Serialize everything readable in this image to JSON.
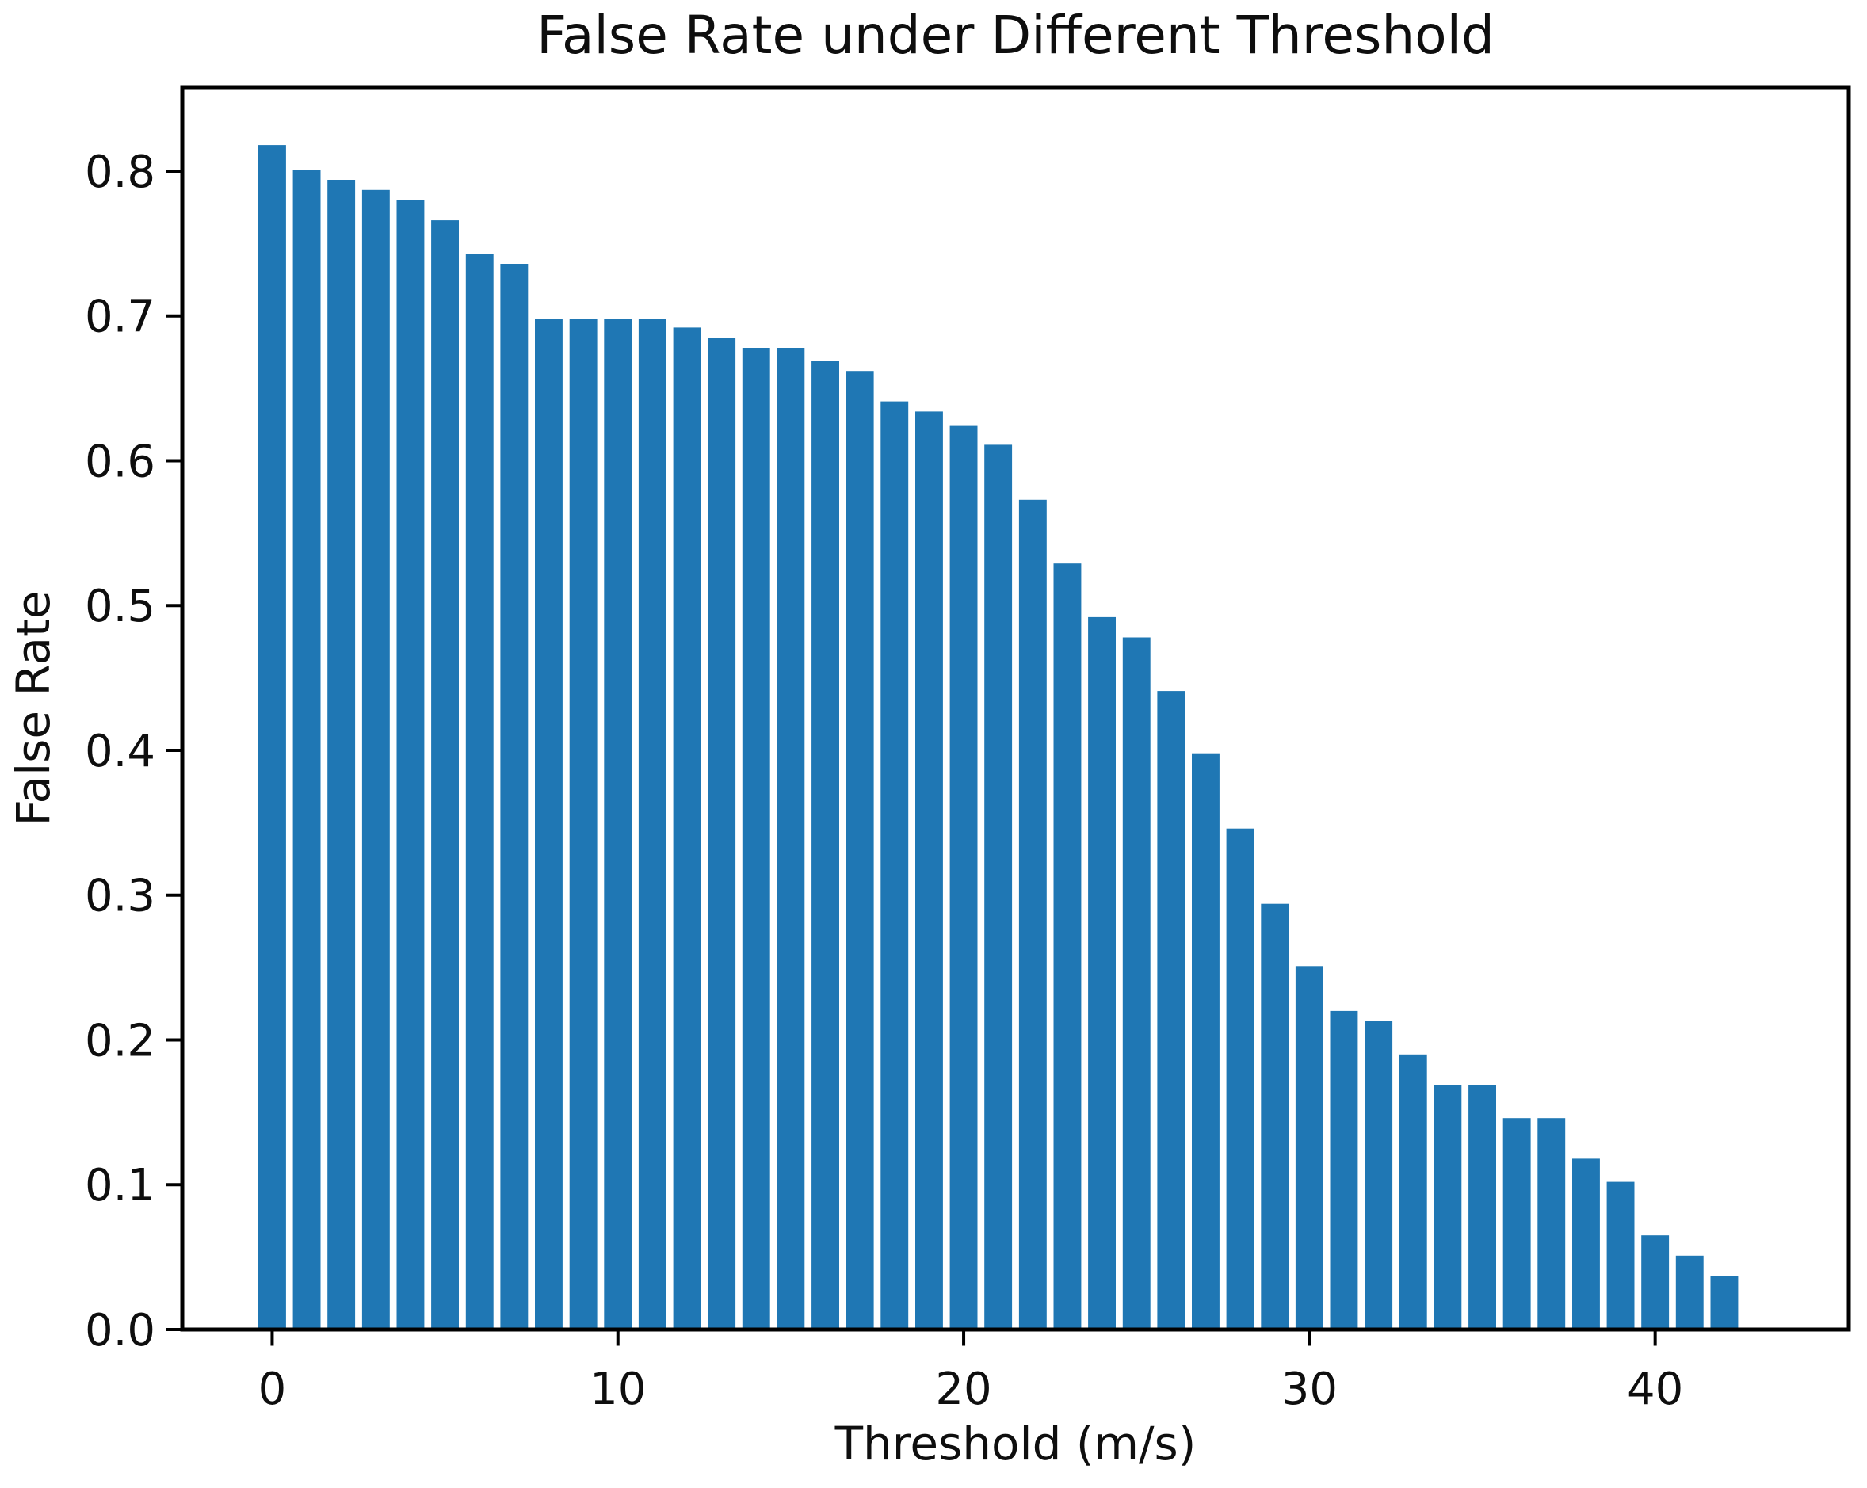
{
  "page": {
    "background": "#ffffff"
  },
  "chart_data": {
    "type": "bar",
    "title": "False Rate under Different Threshold",
    "xlabel": "Threshold (m/s)",
    "ylabel": "False Rate",
    "bar_color": "#1f77b4",
    "axis_color": "#000000",
    "text_color": "#0e0e0e",
    "grid": false,
    "legend": "none",
    "categories": [
      0,
      1,
      2,
      3,
      4,
      5,
      6,
      7,
      8,
      9,
      10,
      11,
      12,
      13,
      14,
      15,
      16,
      17,
      18,
      19,
      20,
      21,
      22,
      23,
      24,
      25,
      26,
      27,
      28,
      29,
      30,
      31,
      32,
      33,
      34,
      35,
      36,
      37,
      38,
      39,
      40,
      41,
      42
    ],
    "values": [
      0.818,
      0.801,
      0.794,
      0.787,
      0.78,
      0.766,
      0.743,
      0.736,
      0.698,
      0.698,
      0.698,
      0.698,
      0.692,
      0.685,
      0.678,
      0.678,
      0.669,
      0.662,
      0.641,
      0.634,
      0.624,
      0.611,
      0.573,
      0.529,
      0.492,
      0.478,
      0.441,
      0.398,
      0.346,
      0.294,
      0.251,
      0.22,
      0.213,
      0.19,
      0.169,
      0.169,
      0.146,
      0.146,
      0.118,
      0.102,
      0.065,
      0.051,
      0.037
    ],
    "bar_width": 0.8,
    "xticks": {
      "values": [
        0,
        10,
        20,
        30,
        40
      ],
      "labels": [
        "0",
        "10",
        "20",
        "30",
        "40"
      ]
    },
    "yticks": {
      "values": [
        0.0,
        0.1,
        0.2,
        0.3,
        0.4,
        0.5,
        0.6,
        0.7,
        0.8
      ],
      "labels": [
        "0.0",
        "0.1",
        "0.2",
        "0.3",
        "0.4",
        "0.5",
        "0.6",
        "0.7",
        "0.8"
      ]
    },
    "xlim": [
      -2.6,
      45.6
    ],
    "ylim": [
      0,
      0.858
    ]
  }
}
